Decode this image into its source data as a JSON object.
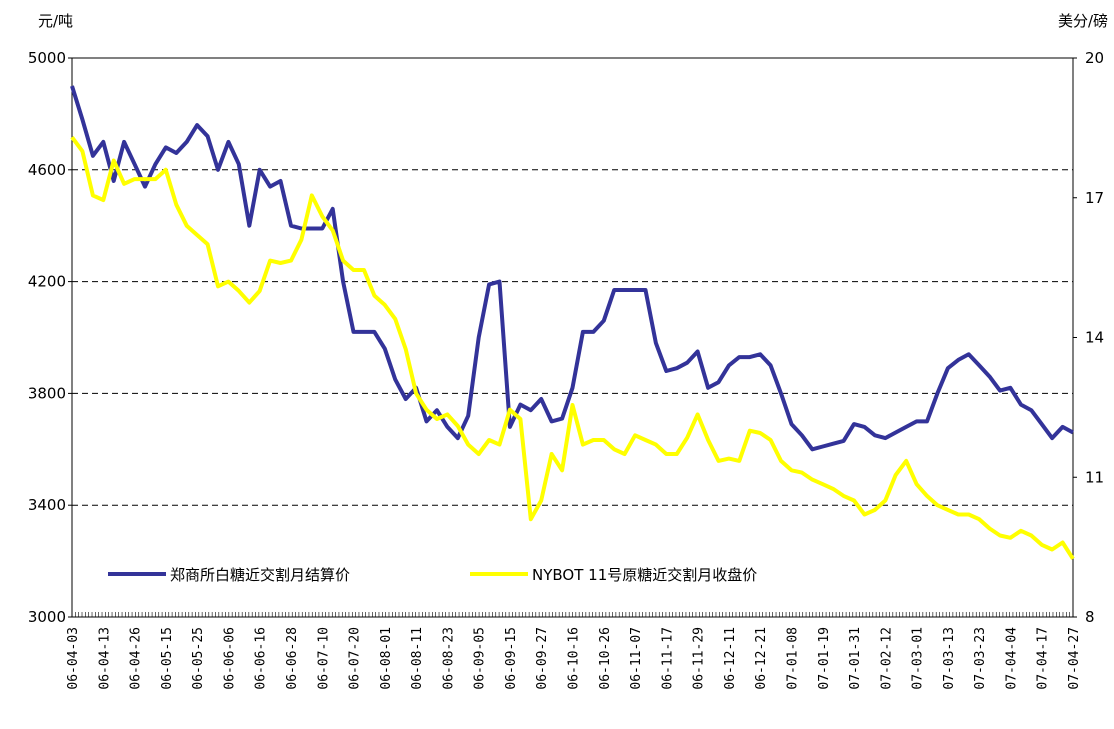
{
  "chart_data": {
    "type": "line",
    "y_label": "元/吨",
    "y2_label": "美分/磅",
    "categories": [
      "06-04-03",
      null,
      null,
      "06-04-13",
      null,
      null,
      "06-04-26",
      null,
      null,
      "06-05-15",
      null,
      null,
      "06-05-25",
      null,
      null,
      "06-06-06",
      null,
      null,
      "06-06-16",
      null,
      null,
      "06-06-28",
      null,
      null,
      "06-07-10",
      null,
      null,
      "06-07-20",
      null,
      null,
      "06-08-01",
      null,
      null,
      "06-08-11",
      null,
      null,
      "06-08-23",
      null,
      null,
      "06-09-05",
      null,
      null,
      "06-09-15",
      null,
      null,
      "06-09-27",
      null,
      null,
      "06-10-16",
      null,
      null,
      "06-10-26",
      null,
      null,
      "06-11-07",
      null,
      null,
      "06-11-17",
      null,
      null,
      "06-11-29",
      null,
      null,
      "06-12-11",
      null,
      null,
      "06-12-21",
      null,
      null,
      "07-01-08",
      null,
      null,
      "07-01-19",
      null,
      null,
      "07-01-31",
      null,
      null,
      "07-02-12",
      null,
      null,
      "07-03-01",
      null,
      null,
      "07-03-13",
      null,
      null,
      "07-03-23",
      null,
      null,
      "07-04-04",
      null,
      null,
      "07-04-17",
      null,
      null,
      "07-04-27"
    ],
    "series": [
      {
        "name": "郑商所白糖近交割月结算价",
        "color": "#333399",
        "axis": "y",
        "values": [
          4900,
          4780,
          4650,
          4700,
          4560,
          4700,
          4620,
          4540,
          4620,
          4680,
          4660,
          4700,
          4760,
          4720,
          4600,
          4700,
          4620,
          4400,
          4600,
          4540,
          4560,
          4400,
          4390,
          4390,
          4390,
          4460,
          4200,
          4020,
          4020,
          4020,
          3960,
          3850,
          3780,
          3820,
          3700,
          3740,
          3680,
          3640,
          3720,
          4000,
          4190,
          4200,
          3680,
          3760,
          3740,
          3780,
          3700,
          3710,
          3820,
          4020,
          4020,
          4060,
          4170,
          4170,
          4170,
          4170,
          3980,
          3880,
          3890,
          3910,
          3950,
          3820,
          3840,
          3900,
          3930,
          3930,
          3940,
          3900,
          3800,
          3690,
          3650,
          3600,
          3610,
          3620,
          3630,
          3690,
          3680,
          3650,
          3640,
          3660,
          3680,
          3700,
          3700,
          3800,
          3890,
          3920,
          3940,
          3900,
          3860,
          3810,
          3820,
          3760,
          3740,
          3690,
          3640,
          3680,
          3660
        ]
      },
      {
        "name": "NYBOT 11号原糖近交割月收盘价",
        "color": "#ffff00",
        "axis": "y2",
        "values": [
          18.3,
          18.0,
          17.05,
          16.95,
          17.8,
          17.3,
          17.4,
          17.4,
          17.4,
          17.6,
          16.85,
          16.4,
          16.2,
          16.0,
          15.1,
          15.2,
          15.0,
          14.75,
          15.0,
          15.65,
          15.6,
          15.65,
          16.1,
          17.05,
          16.6,
          16.3,
          15.65,
          15.45,
          15.45,
          14.9,
          14.7,
          14.4,
          13.75,
          12.8,
          12.45,
          12.25,
          12.35,
          12.1,
          11.7,
          11.5,
          11.8,
          11.7,
          12.45,
          12.25,
          10.1,
          10.5,
          11.5,
          11.15,
          12.55,
          11.7,
          11.8,
          11.8,
          11.6,
          11.5,
          11.9,
          11.8,
          11.7,
          11.5,
          11.5,
          11.85,
          12.35,
          11.8,
          11.35,
          11.4,
          11.35,
          12.0,
          11.95,
          11.8,
          11.35,
          11.15,
          11.1,
          10.95,
          10.85,
          10.75,
          10.6,
          10.5,
          10.2,
          10.3,
          10.5,
          11.05,
          11.35,
          10.85,
          10.6,
          10.4,
          10.3,
          10.2,
          10.2,
          10.1,
          9.9,
          9.75,
          9.7,
          9.85,
          9.75,
          9.55,
          9.45,
          9.6,
          9.25
        ]
      }
    ],
    "ylim": [
      3000,
      5000
    ],
    "yticks": [
      3000,
      3400,
      3800,
      4200,
      4600,
      5000
    ],
    "y2lim": [
      8,
      20
    ],
    "y2ticks": [
      8,
      11,
      14,
      17,
      20
    ],
    "grid": true,
    "legend": "lower left"
  }
}
